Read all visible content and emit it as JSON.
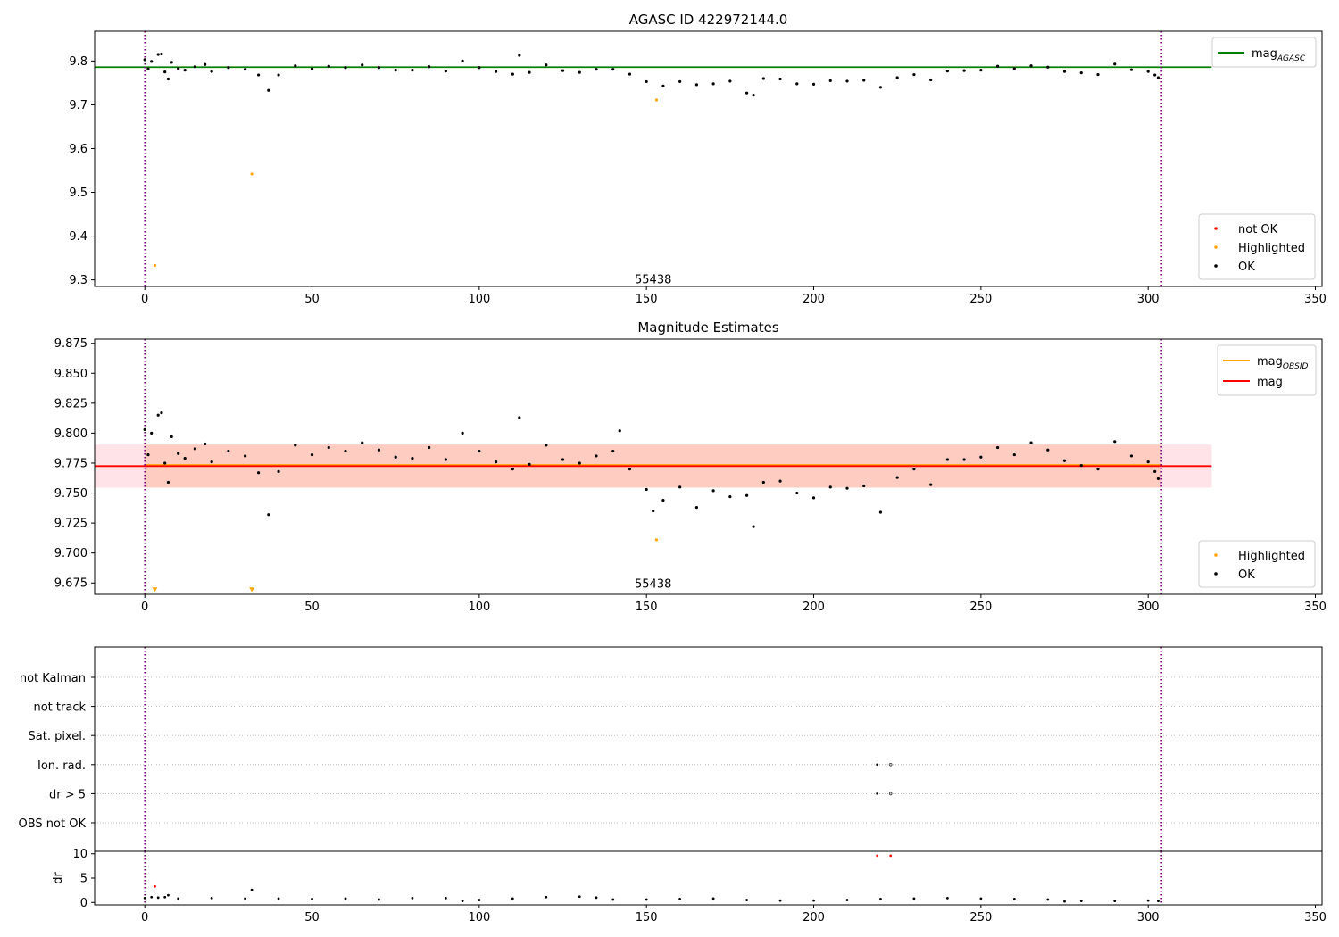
{
  "chart_data": [
    {
      "type": "scatter",
      "title": "AGASC ID 422972144.0",
      "xlabel": "",
      "ylabel": "",
      "xlim": [
        -15,
        352
      ],
      "ylim": [
        9.285,
        9.868
      ],
      "xticks": [
        0,
        50,
        100,
        150,
        200,
        250,
        300,
        350
      ],
      "yticks": [
        9.3,
        9.4,
        9.5,
        9.6,
        9.7,
        9.8
      ],
      "grid": false,
      "vlines": [
        0,
        304
      ],
      "annotation": {
        "text": "55438",
        "x": 152,
        "y": 9.3
      },
      "legend_lines": {
        "placement": "top-right",
        "entries": [
          {
            "label": "mag",
            "sub": "AGASC",
            "color": "#008000"
          }
        ]
      },
      "legend_points": {
        "placement": "bottom-right",
        "entries": [
          {
            "label": "not OK",
            "color": "#ff0000"
          },
          {
            "label": "Highlighted",
            "color": "#ffa500"
          },
          {
            "label": "OK",
            "color": "#000000"
          }
        ]
      },
      "lines": [
        {
          "name": "mag_AGASC",
          "y": 9.786,
          "x": [
            -15,
            319
          ],
          "color": "#008000"
        }
      ],
      "series": [
        {
          "name": "Highlighted",
          "color": "#ffa500",
          "x": [
            3,
            32,
            153
          ],
          "y": [
            9.333,
            9.542,
            9.711
          ]
        },
        {
          "name": "OK",
          "color": "#000000",
          "x": [
            0,
            1,
            2,
            4,
            5,
            6,
            7,
            8,
            10,
            12,
            15,
            18,
            20,
            25,
            30,
            34,
            37,
            40,
            45,
            50,
            55,
            60,
            65,
            70,
            75,
            80,
            85,
            90,
            95,
            100,
            105,
            110,
            112,
            115,
            120,
            125,
            130,
            135,
            140,
            145,
            150,
            155,
            160,
            165,
            170,
            175,
            180,
            182,
            185,
            190,
            195,
            200,
            205,
            210,
            215,
            220,
            225,
            230,
            235,
            240,
            245,
            250,
            255,
            260,
            265,
            270,
            275,
            280,
            285,
            290,
            295,
            300,
            302,
            303
          ],
          "y": [
            9.803,
            9.782,
            9.799,
            9.815,
            9.816,
            9.775,
            9.759,
            9.797,
            9.783,
            9.779,
            9.787,
            9.792,
            9.776,
            9.785,
            9.781,
            9.768,
            9.733,
            9.768,
            9.789,
            9.782,
            9.788,
            9.785,
            9.791,
            9.785,
            9.779,
            9.779,
            9.787,
            9.777,
            9.8,
            9.785,
            9.776,
            9.77,
            9.813,
            9.774,
            9.791,
            9.778,
            9.774,
            9.781,
            9.781,
            9.77,
            9.753,
            9.743,
            9.753,
            9.746,
            9.748,
            9.754,
            9.727,
            9.722,
            9.76,
            9.759,
            9.748,
            9.747,
            9.755,
            9.754,
            9.756,
            9.74,
            9.762,
            9.769,
            9.757,
            9.777,
            9.778,
            9.779,
            9.788,
            9.783,
            9.789,
            9.786,
            9.776,
            9.773,
            9.769,
            9.793,
            9.78,
            9.776,
            9.768,
            9.762
          ]
        }
      ]
    },
    {
      "type": "scatter",
      "title": "Magnitude Estimates",
      "xlabel": "",
      "ylabel": "",
      "xlim": [
        -15,
        352
      ],
      "ylim": [
        9.6655,
        9.8785
      ],
      "xticks": [
        0,
        50,
        100,
        150,
        200,
        250,
        300,
        350
      ],
      "yticks": [
        9.675,
        9.7,
        9.725,
        9.75,
        9.775,
        9.8,
        9.825,
        9.85,
        9.875
      ],
      "grid": false,
      "vlines": [
        0,
        304
      ],
      "annotation": {
        "text": "55438",
        "x": 152,
        "y": 9.674
      },
      "legend_lines": {
        "placement": "top-right",
        "entries": [
          {
            "label": "mag",
            "sub": "OBSID",
            "color": "#ffa500"
          },
          {
            "label": "mag",
            "sub": "",
            "color": "#ff0000"
          }
        ]
      },
      "legend_points": {
        "placement": "bottom-right",
        "entries": [
          {
            "label": "Highlighted",
            "color": "#ffa500"
          },
          {
            "label": "OK",
            "color": "#000000"
          }
        ]
      },
      "bands": [
        {
          "y0": 9.7545,
          "y1": 9.7905,
          "x": [
            -15,
            319
          ],
          "color": "#ffc0cb",
          "opacity": 0.45
        },
        {
          "y0": 9.7545,
          "y1": 9.7905,
          "x": [
            0,
            304
          ],
          "color": "#ffa07a",
          "opacity": 0.35
        }
      ],
      "lines": [
        {
          "name": "mag_OBSID",
          "y": 9.7735,
          "x": [
            0,
            304
          ],
          "color": "#ffa500"
        },
        {
          "name": "mag",
          "y": 9.7725,
          "x": [
            -15,
            319
          ],
          "color": "#ff0000"
        }
      ],
      "series": [
        {
          "name": "Highlighted",
          "color": "#ffa500",
          "x": [
            3,
            32,
            153
          ],
          "y": [
            9.669,
            9.669,
            9.711
          ],
          "markers": [
            "v",
            "v",
            "o"
          ]
        },
        {
          "name": "OK",
          "color": "#000000",
          "x": [
            0,
            1,
            2,
            4,
            5,
            6,
            7,
            8,
            10,
            12,
            15,
            18,
            20,
            25,
            30,
            34,
            37,
            40,
            45,
            50,
            55,
            60,
            65,
            70,
            75,
            80,
            85,
            90,
            95,
            100,
            105,
            110,
            112,
            115,
            120,
            125,
            130,
            135,
            140,
            142,
            145,
            150,
            152,
            155,
            160,
            165,
            170,
            175,
            180,
            182,
            185,
            190,
            195,
            200,
            205,
            210,
            215,
            220,
            225,
            230,
            235,
            240,
            245,
            250,
            255,
            260,
            265,
            270,
            275,
            280,
            285,
            290,
            295,
            300,
            302,
            303
          ],
          "y": [
            9.803,
            9.782,
            9.8,
            9.815,
            9.817,
            9.775,
            9.759,
            9.797,
            9.783,
            9.779,
            9.787,
            9.791,
            9.776,
            9.785,
            9.781,
            9.767,
            9.732,
            9.768,
            9.79,
            9.782,
            9.788,
            9.785,
            9.792,
            9.786,
            9.78,
            9.779,
            9.788,
            9.778,
            9.8,
            9.785,
            9.776,
            9.77,
            9.813,
            9.774,
            9.79,
            9.778,
            9.775,
            9.781,
            9.785,
            9.802,
            9.77,
            9.753,
            9.735,
            9.744,
            9.755,
            9.738,
            9.752,
            9.747,
            9.748,
            9.722,
            9.759,
            9.76,
            9.75,
            9.746,
            9.755,
            9.754,
            9.756,
            9.734,
            9.763,
            9.77,
            9.757,
            9.778,
            9.778,
            9.78,
            9.788,
            9.782,
            9.792,
            9.786,
            9.777,
            9.773,
            9.77,
            9.793,
            9.781,
            9.776,
            9.768,
            9.762
          ]
        }
      ]
    },
    {
      "type": "scatter",
      "title": "",
      "xlabel": "",
      "ylabel": "",
      "xlim": [
        -15,
        352
      ],
      "categories": [
        "not Kalman",
        "not track",
        "Sat. pixel.",
        "Ion. rad.",
        "dr > 5",
        "OBS not OK"
      ],
      "grid": "horizontal dotted",
      "vlines": [
        0,
        304
      ],
      "flags": [
        {
          "category": "Ion. rad.",
          "x": [
            219,
            223
          ]
        },
        {
          "category": "dr > 5",
          "x": [
            219,
            223
          ]
        }
      ]
    },
    {
      "type": "scatter",
      "title": "",
      "xlabel": "",
      "ylabel": "dr",
      "xlim": [
        -15,
        352
      ],
      "ylim": [
        -0.5,
        10.5
      ],
      "xticks": [
        0,
        50,
        100,
        150,
        200,
        250,
        300,
        350
      ],
      "yticks": [
        0,
        5,
        10
      ],
      "grid": false,
      "vlines": [
        0,
        304
      ],
      "series": [
        {
          "name": "not OK",
          "color": "#ff0000",
          "x": [
            3,
            219,
            223
          ],
          "y": [
            3.3,
            9.6,
            9.6
          ]
        },
        {
          "name": "OK",
          "color": "#000000",
          "x": [
            0,
            2,
            4,
            6,
            7,
            10,
            20,
            30,
            32,
            40,
            50,
            60,
            70,
            80,
            90,
            95,
            100,
            110,
            120,
            130,
            135,
            140,
            150,
            160,
            170,
            180,
            190,
            200,
            210,
            220,
            230,
            240,
            250,
            260,
            270,
            275,
            280,
            290,
            300,
            303
          ],
          "y": [
            0.9,
            1.1,
            1.0,
            1.1,
            1.5,
            0.8,
            0.9,
            0.8,
            2.6,
            0.8,
            0.7,
            0.8,
            0.6,
            0.9,
            0.9,
            0.3,
            0.5,
            0.8,
            1.1,
            1.2,
            1.0,
            0.6,
            0.6,
            0.7,
            0.8,
            0.5,
            0.4,
            0.4,
            0.5,
            0.7,
            0.8,
            0.9,
            0.8,
            0.7,
            0.6,
            0.2,
            0.3,
            0.3,
            0.4,
            0.3
          ]
        }
      ]
    }
  ]
}
